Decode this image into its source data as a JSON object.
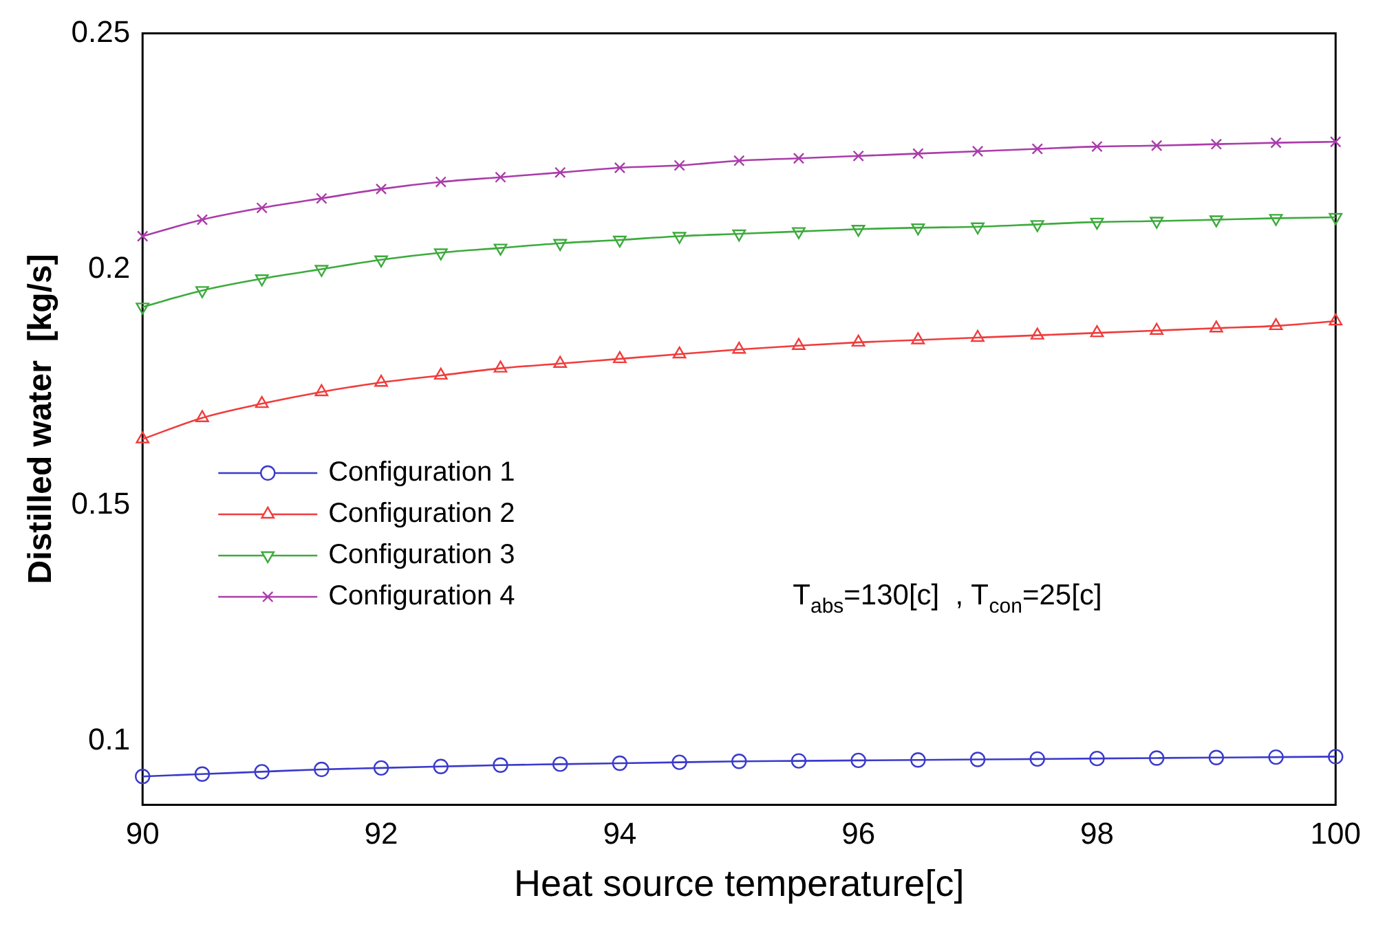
{
  "chart_data": {
    "type": "line",
    "xlabel": "Heat source temperature[c]",
    "ylabel": "Distilled water  [kg/s]",
    "x": [
      90,
      90.5,
      91,
      91.5,
      92,
      92.5,
      93,
      93.5,
      94,
      94.5,
      95,
      95.5,
      96,
      96.5,
      97,
      97.5,
      98,
      98.5,
      99,
      99.5,
      100
    ],
    "series": [
      {
        "name": "Configuration 1",
        "color": "#3a3acc",
        "marker": "circle",
        "values": [
          0.0925,
          0.093,
          0.0935,
          0.094,
          0.0943,
          0.0946,
          0.0949,
          0.0951,
          0.0953,
          0.0955,
          0.0957,
          0.0958,
          0.0959,
          0.096,
          0.0961,
          0.0962,
          0.0963,
          0.0964,
          0.0965,
          0.0966,
          0.0967
        ]
      },
      {
        "name": "Configuration 2",
        "color": "#f03c3c",
        "marker": "triangle",
        "values": [
          0.164,
          0.1685,
          0.1715,
          0.174,
          0.176,
          0.1775,
          0.179,
          0.18,
          0.181,
          0.182,
          0.183,
          0.1838,
          0.1845,
          0.185,
          0.1855,
          0.186,
          0.1865,
          0.187,
          0.1875,
          0.188,
          0.189
        ]
      },
      {
        "name": "Configuration 3",
        "color": "#3caa3c",
        "marker": "triangle-down",
        "values": [
          0.192,
          0.1955,
          0.198,
          0.2,
          0.202,
          0.2035,
          0.2045,
          0.2055,
          0.2062,
          0.207,
          0.2075,
          0.208,
          0.2085,
          0.2088,
          0.209,
          0.2095,
          0.21,
          0.2102,
          0.2105,
          0.2108,
          0.211
        ]
      },
      {
        "name": "Configuration 4",
        "color": "#aa3caa",
        "marker": "cross",
        "values": [
          0.207,
          0.2105,
          0.213,
          0.215,
          0.217,
          0.2185,
          0.2195,
          0.2205,
          0.2215,
          0.222,
          0.223,
          0.2235,
          0.224,
          0.2245,
          0.225,
          0.2255,
          0.226,
          0.2262,
          0.2265,
          0.2268,
          0.227
        ]
      }
    ],
    "xlim": [
      90,
      100
    ],
    "xticks": [
      90,
      92,
      94,
      96,
      98,
      100
    ],
    "ylim": [
      0.0865,
      0.25
    ],
    "yticks": [
      0.1,
      0.15,
      0.2,
      0.25
    ],
    "grid": false,
    "legend": "left",
    "line_style": "solid",
    "annotations": [
      "T$_{abs}$=130[c]  , T$_{con}$=25[c]"
    ]
  }
}
